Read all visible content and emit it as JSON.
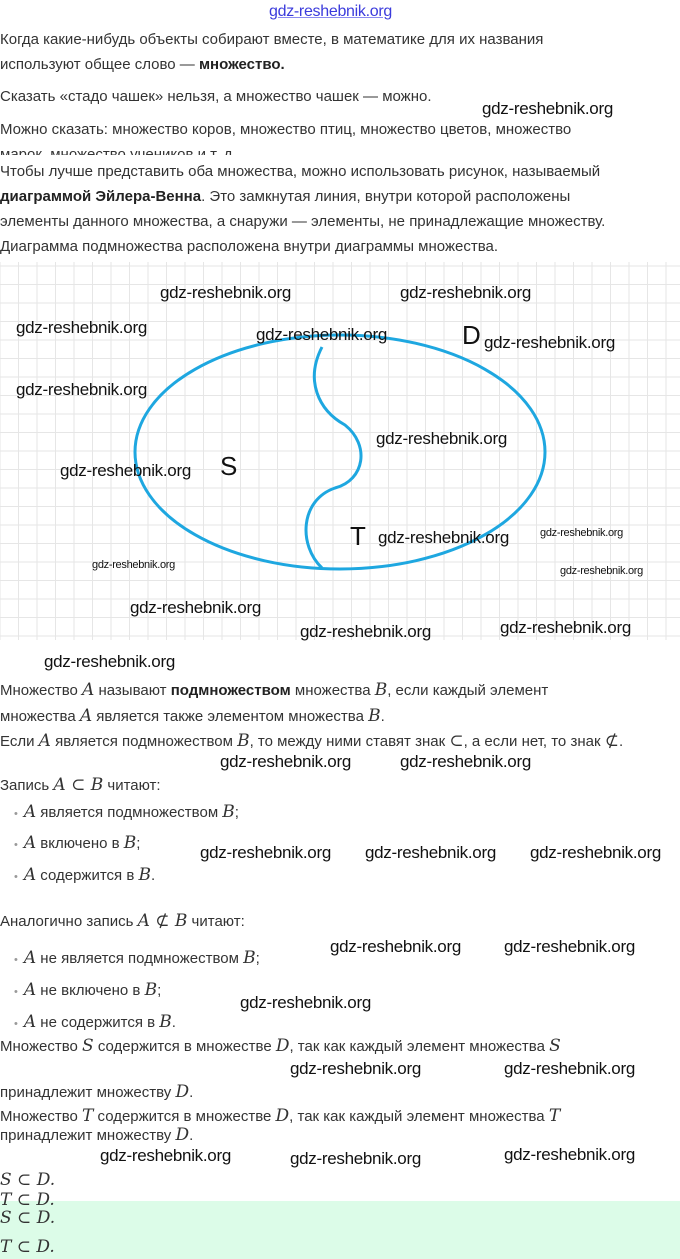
{
  "watermark": "gdz-reshebnik.org",
  "diagram": {
    "labels": {
      "outer": "D",
      "left": "S",
      "right": "T"
    },
    "colors": {
      "outline": "#1ea7e0",
      "grid": "#e6e6e6"
    }
  },
  "answer_background": "#dcfce8",
  "lines": [
    {
      "type": "p",
      "parts": [
        {
          "s": "plain",
          "t": "Когда какие-нибудь объекты собирают вместе, в математике для их названия"
        }
      ]
    },
    {
      "type": "p",
      "parts": [
        {
          "s": "plain",
          "t": "используют общее слово — "
        },
        {
          "s": "bold",
          "t": "множество."
        }
      ]
    },
    {
      "type": "p",
      "parts": [
        {
          "s": "plain",
          "t": "Сказать «стадо чашек» нельзя, а множество чашек — можно."
        }
      ]
    },
    {
      "type": "p",
      "parts": [
        {
          "s": "plain",
          "t": "Можно сказать: множество коров, множество птиц, множество цветов, множество"
        }
      ]
    },
    {
      "type": "p",
      "parts": [
        {
          "s": "plain",
          "t": "марок, множество учеников и т. д."
        }
      ]
    },
    {
      "type": "p",
      "parts": [
        {
          "s": "plain",
          "t": "Чтобы лучше представить оба множества, можно использовать рисунок, называемый"
        }
      ]
    },
    {
      "type": "p",
      "parts": [
        {
          "s": "bold",
          "t": "диаграммой Эйлера-Венна"
        },
        {
          "s": "plain",
          "t": ". Это замкнутая линия, внутри которой расположены"
        }
      ]
    },
    {
      "type": "p",
      "parts": [
        {
          "s": "plain",
          "t": "элементы данного множества, а снаружи — элементы, не принадлежащие множеству."
        }
      ]
    },
    {
      "type": "p",
      "parts": [
        {
          "s": "plain",
          "t": "Диаграмма подмножества расположена внутри диаграммы множества."
        }
      ]
    },
    {
      "type": "p",
      "parts": [
        {
          "s": "plain",
          "t": "Множество "
        },
        {
          "s": "math",
          "t": "A"
        },
        {
          "s": "plain",
          "t": " называют "
        },
        {
          "s": "bold",
          "t": "подмножеством"
        },
        {
          "s": "plain",
          "t": " множества "
        },
        {
          "s": "math",
          "t": "B"
        },
        {
          "s": "plain",
          "t": ", если каждый элемент"
        }
      ]
    },
    {
      "type": "p",
      "parts": [
        {
          "s": "plain",
          "t": "множества "
        },
        {
          "s": "math",
          "t": "A"
        },
        {
          "s": "plain",
          "t": " является также элементом множества "
        },
        {
          "s": "math",
          "t": "B"
        },
        {
          "s": "plain",
          "t": "."
        }
      ]
    },
    {
      "type": "p",
      "parts": [
        {
          "s": "plain",
          "t": "Если "
        },
        {
          "s": "math",
          "t": "A"
        },
        {
          "s": "plain",
          "t": " является подмножеством "
        },
        {
          "s": "math",
          "t": "B"
        },
        {
          "s": "plain",
          "t": ", то между ними ставят знак "
        },
        {
          "s": "math",
          "t": "⊂"
        },
        {
          "s": "plain",
          "t": ", а если нет, то знак "
        },
        {
          "s": "math",
          "t": "⊄"
        },
        {
          "s": "plain",
          "t": "."
        }
      ]
    },
    {
      "type": "p",
      "parts": [
        {
          "s": "plain",
          "t": "Запись "
        },
        {
          "s": "math",
          "t": "A ⊂ B"
        },
        {
          "s": "plain",
          "t": " читают:"
        }
      ]
    },
    {
      "type": "li",
      "parts": [
        {
          "s": "math",
          "t": "A"
        },
        {
          "s": "plain",
          "t": " является подмножеством "
        },
        {
          "s": "math",
          "t": "B"
        },
        {
          "s": "plain",
          "t": ";"
        }
      ]
    },
    {
      "type": "li",
      "parts": [
        {
          "s": "math",
          "t": "A"
        },
        {
          "s": "plain",
          "t": " включено в "
        },
        {
          "s": "math",
          "t": "B"
        },
        {
          "s": "plain",
          "t": ";"
        }
      ]
    },
    {
      "type": "li",
      "parts": [
        {
          "s": "math",
          "t": "A"
        },
        {
          "s": "plain",
          "t": " содержится в "
        },
        {
          "s": "math",
          "t": "B"
        },
        {
          "s": "plain",
          "t": "."
        }
      ]
    },
    {
      "type": "p",
      "parts": [
        {
          "s": "plain",
          "t": "Аналогично запись "
        },
        {
          "s": "math",
          "t": "A ⊄ B"
        },
        {
          "s": "plain",
          "t": " читают:"
        }
      ]
    },
    {
      "type": "li",
      "parts": [
        {
          "s": "math",
          "t": "A"
        },
        {
          "s": "plain",
          "t": " не является подмножеством "
        },
        {
          "s": "math",
          "t": "B"
        },
        {
          "s": "plain",
          "t": ";"
        }
      ]
    },
    {
      "type": "li",
      "parts": [
        {
          "s": "math",
          "t": "A"
        },
        {
          "s": "plain",
          "t": " не включено в "
        },
        {
          "s": "math",
          "t": "B"
        },
        {
          "s": "plain",
          "t": ";"
        }
      ]
    },
    {
      "type": "li",
      "parts": [
        {
          "s": "math",
          "t": "A"
        },
        {
          "s": "plain",
          "t": " не содержится в "
        },
        {
          "s": "math",
          "t": "B"
        },
        {
          "s": "plain",
          "t": "."
        }
      ]
    },
    {
      "type": "p",
      "parts": [
        {
          "s": "plain",
          "t": "Множество "
        },
        {
          "s": "math",
          "t": "S"
        },
        {
          "s": "plain",
          "t": " содержится в множестве "
        },
        {
          "s": "math",
          "t": "D"
        },
        {
          "s": "plain",
          "t": ", так как каждый элемент множества "
        },
        {
          "s": "math",
          "t": "S"
        }
      ]
    },
    {
      "type": "p",
      "parts": [
        {
          "s": "plain",
          "t": "принадлежит множеству "
        },
        {
          "s": "math",
          "t": "D"
        },
        {
          "s": "plain",
          "t": "."
        }
      ]
    },
    {
      "type": "p",
      "parts": [
        {
          "s": "plain",
          "t": "Множество "
        },
        {
          "s": "math",
          "t": "T"
        },
        {
          "s": "plain",
          "t": " содержится в множестве "
        },
        {
          "s": "math",
          "t": "D"
        },
        {
          "s": "plain",
          "t": ", так как каждый элемент множества "
        },
        {
          "s": "math",
          "t": "T"
        }
      ]
    },
    {
      "type": "p",
      "parts": [
        {
          "s": "plain",
          "t": "принадлежит множеству "
        },
        {
          "s": "math",
          "t": "D"
        },
        {
          "s": "plain",
          "t": "."
        }
      ]
    },
    {
      "type": "p",
      "parts": [
        {
          "s": "math",
          "t": "S ⊂ D."
        }
      ]
    },
    {
      "type": "p",
      "parts": [
        {
          "s": "math",
          "t": "T ⊂ D."
        }
      ]
    },
    {
      "type": "p",
      "parts": [
        {
          "s": "math",
          "t": "S ⊂ D."
        }
      ]
    },
    {
      "type": "p",
      "parts": [
        {
          "s": "math",
          "t": "T ⊂ D."
        }
      ]
    }
  ]
}
